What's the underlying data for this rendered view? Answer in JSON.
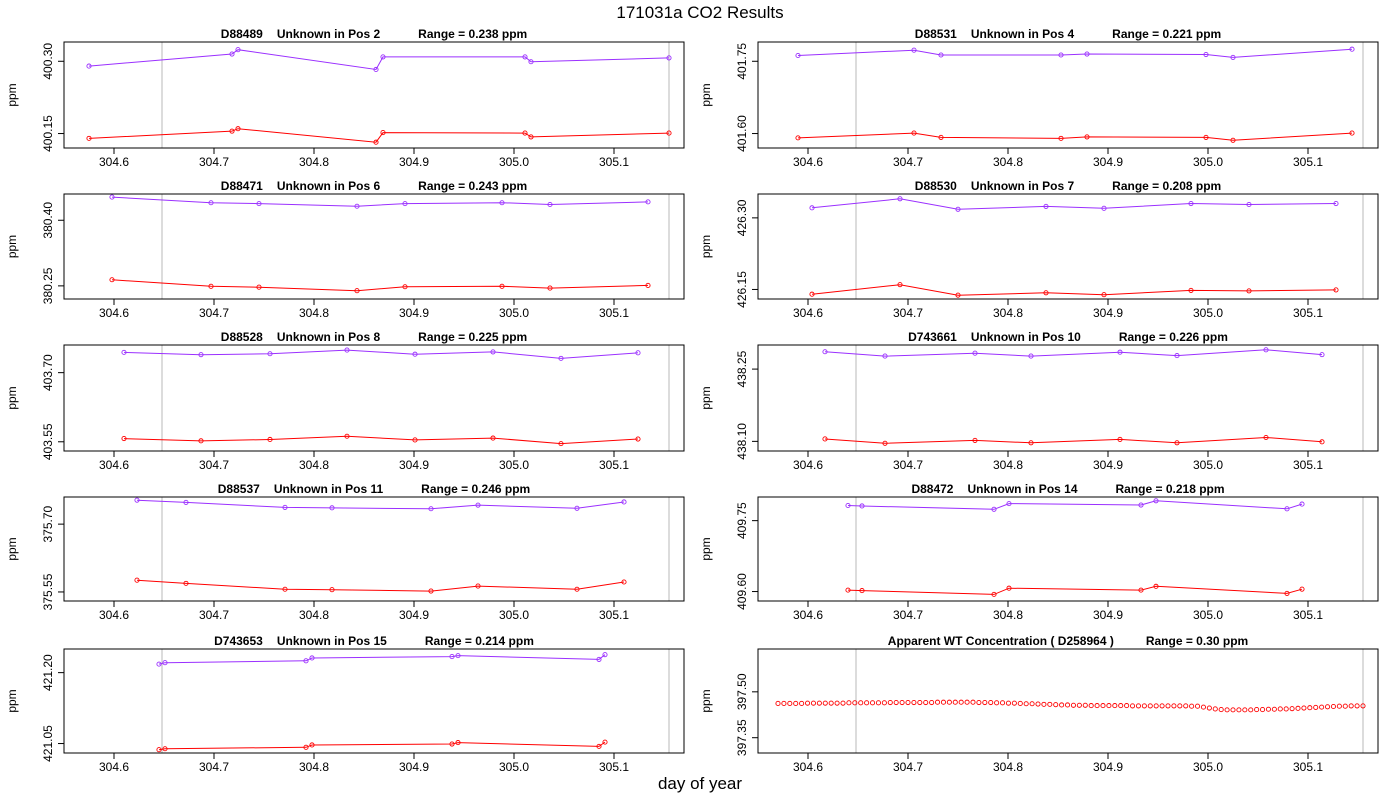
{
  "title": "171031a  CO2 Results",
  "xlabel": "day of year",
  "colors": {
    "upper": "#9b30ff",
    "lower": "#ff0000",
    "vline": "#c8c8c8",
    "axis": "#000000"
  },
  "chart_data": [
    {
      "type": "line",
      "panel_id": "D88489",
      "panel_label": "Unknown in Pos 2",
      "range_label": "Range =  0.238 ppm",
      "ylabel": "ppm",
      "xlim": [
        304.55,
        305.17
      ],
      "ylim": [
        400.12,
        400.34
      ],
      "xticks": [
        "304.6",
        "304.7",
        "304.8",
        "304.9",
        "305.0",
        "305.1"
      ],
      "yticks": [
        "400.15",
        "400.30"
      ],
      "vlines": [
        304.648,
        305.155
      ],
      "series": [
        {
          "role": "upper",
          "x": [
            304.575,
            304.718,
            304.724,
            304.862,
            304.869,
            305.011,
            305.017,
            305.155
          ],
          "y": [
            400.29,
            400.315,
            400.324,
            400.283,
            400.309,
            400.309,
            400.299,
            400.307
          ]
        },
        {
          "role": "lower",
          "x": [
            304.575,
            304.718,
            304.724,
            304.862,
            304.869,
            305.011,
            305.017,
            305.155
          ],
          "y": [
            400.14,
            400.155,
            400.16,
            400.132,
            400.152,
            400.151,
            400.143,
            400.151
          ]
        }
      ]
    },
    {
      "type": "line",
      "panel_id": "D88531",
      "panel_label": "Unknown in Pos 4",
      "range_label": "Range =  0.221 ppm",
      "ylabel": "ppm",
      "xlim": [
        304.55,
        305.17
      ],
      "ylim": [
        401.57,
        401.79
      ],
      "xticks": [
        "304.6",
        "304.7",
        "304.8",
        "304.9",
        "305.0",
        "305.1"
      ],
      "yticks": [
        "401.60",
        "401.75"
      ],
      "vlines": [
        304.648,
        305.155
      ],
      "series": [
        {
          "role": "upper",
          "x": [
            304.59,
            304.706,
            304.733,
            304.853,
            304.879,
            304.998,
            305.025,
            305.144
          ],
          "y": [
            401.762,
            401.773,
            401.763,
            401.763,
            401.765,
            401.764,
            401.758,
            401.775
          ]
        },
        {
          "role": "lower",
          "x": [
            304.59,
            304.706,
            304.733,
            304.853,
            304.879,
            304.998,
            305.025,
            305.144
          ],
          "y": [
            401.591,
            401.601,
            401.592,
            401.59,
            401.593,
            401.592,
            401.586,
            401.601
          ]
        }
      ]
    },
    {
      "type": "line",
      "panel_id": "D88471",
      "panel_label": "Unknown in Pos 6",
      "range_label": "Range =  0.243 ppm",
      "ylabel": "ppm",
      "xlim": [
        304.55,
        305.17
      ],
      "ylim": [
        380.22,
        380.46
      ],
      "xticks": [
        "304.6",
        "304.7",
        "304.8",
        "304.9",
        "305.0",
        "305.1"
      ],
      "yticks": [
        "380.25",
        "380.40"
      ],
      "vlines": [
        304.648,
        305.155
      ],
      "series": [
        {
          "role": "upper",
          "x": [
            304.598,
            304.697,
            304.745,
            304.843,
            304.891,
            304.988,
            305.036,
            305.134
          ],
          "y": [
            380.453,
            380.44,
            380.438,
            380.432,
            380.438,
            380.44,
            380.436,
            380.442
          ]
        },
        {
          "role": "lower",
          "x": [
            304.598,
            304.697,
            304.745,
            304.843,
            304.891,
            304.988,
            305.036,
            305.134
          ],
          "y": [
            380.264,
            380.249,
            380.247,
            380.239,
            380.248,
            380.249,
            380.245,
            380.251
          ]
        }
      ]
    },
    {
      "type": "line",
      "panel_id": "D88530",
      "panel_label": "Unknown in Pos 7",
      "range_label": "Range =  0.208 ppm",
      "ylabel": "ppm",
      "xlim": [
        304.55,
        305.17
      ],
      "ylim": [
        426.13,
        426.35
      ],
      "xticks": [
        "304.6",
        "304.7",
        "304.8",
        "304.9",
        "305.0",
        "305.1"
      ],
      "yticks": [
        "426.15",
        "426.30"
      ],
      "vlines": [
        304.648,
        305.155
      ],
      "series": [
        {
          "role": "upper",
          "x": [
            304.604,
            304.692,
            304.75,
            304.838,
            304.896,
            304.983,
            305.041,
            305.128
          ],
          "y": [
            426.321,
            426.34,
            426.318,
            426.324,
            426.32,
            426.33,
            426.328,
            426.33
          ]
        },
        {
          "role": "lower",
          "x": [
            304.604,
            304.692,
            304.75,
            304.838,
            304.896,
            304.983,
            305.041,
            305.128
          ],
          "y": [
            426.14,
            426.16,
            426.138,
            426.143,
            426.139,
            426.148,
            426.147,
            426.149
          ]
        }
      ]
    },
    {
      "type": "line",
      "panel_id": "D88528",
      "panel_label": "Unknown in Pos 8",
      "range_label": "Range =  0.225 ppm",
      "ylabel": "ppm",
      "xlim": [
        304.55,
        305.17
      ],
      "ylim": [
        403.53,
        403.76
      ],
      "xticks": [
        "304.6",
        "304.7",
        "304.8",
        "304.9",
        "305.0",
        "305.1"
      ],
      "yticks": [
        "403.55",
        "403.70"
      ],
      "vlines": [
        304.648,
        305.155
      ],
      "series": [
        {
          "role": "upper",
          "x": [
            304.61,
            304.687,
            304.756,
            304.833,
            304.901,
            304.979,
            305.047,
            305.124
          ],
          "y": [
            403.744,
            403.739,
            403.741,
            403.749,
            403.74,
            403.745,
            403.731,
            403.743
          ]
        },
        {
          "role": "lower",
          "x": [
            304.61,
            304.687,
            304.756,
            304.833,
            304.901,
            304.979,
            305.047,
            305.124
          ],
          "y": [
            403.557,
            403.552,
            403.555,
            403.562,
            403.554,
            403.558,
            403.546,
            403.556
          ]
        }
      ]
    },
    {
      "type": "line",
      "panel_id": "D743661",
      "panel_label": "Unknown in Pos 10",
      "range_label": "Range =  0.226 ppm",
      "ylabel": "ppm",
      "xlim": [
        304.55,
        305.17
      ],
      "ylim": [
        438.08,
        438.3
      ],
      "xticks": [
        "304.6",
        "304.7",
        "304.8",
        "304.9",
        "305.0",
        "305.1"
      ],
      "yticks": [
        "438.10",
        "438.25"
      ],
      "vlines": [
        304.648,
        305.155
      ],
      "series": [
        {
          "role": "upper",
          "x": [
            304.617,
            304.677,
            304.767,
            304.823,
            304.912,
            304.969,
            305.058,
            305.114
          ],
          "y": [
            438.286,
            438.277,
            438.283,
            438.277,
            438.285,
            438.278,
            438.29,
            438.28
          ]
        },
        {
          "role": "lower",
          "x": [
            304.617,
            304.677,
            304.767,
            304.823,
            304.912,
            304.969,
            305.058,
            305.114
          ],
          "y": [
            438.105,
            438.096,
            438.102,
            438.097,
            438.104,
            438.097,
            438.108,
            438.099
          ]
        }
      ]
    },
    {
      "type": "line",
      "panel_id": "D88537",
      "panel_label": "Unknown in Pos 11",
      "range_label": "Range =  0.246 ppm",
      "ylabel": "ppm",
      "xlim": [
        304.55,
        305.17
      ],
      "ylim": [
        375.53,
        375.76
      ],
      "xticks": [
        "304.6",
        "304.7",
        "304.8",
        "304.9",
        "305.0",
        "305.1"
      ],
      "yticks": [
        "375.55",
        "375.70"
      ],
      "vlines": [
        304.648,
        305.155
      ],
      "series": [
        {
          "role": "upper",
          "x": [
            304.623,
            304.672,
            304.771,
            304.818,
            304.917,
            304.964,
            305.063,
            305.11
          ],
          "y": [
            375.753,
            375.748,
            375.737,
            375.736,
            375.734,
            375.742,
            375.735,
            375.749
          ]
        },
        {
          "role": "lower",
          "x": [
            304.623,
            304.672,
            304.771,
            304.818,
            304.917,
            304.964,
            305.063,
            305.11
          ],
          "y": [
            375.576,
            375.569,
            375.556,
            375.555,
            375.552,
            375.563,
            375.556,
            375.572
          ]
        }
      ]
    },
    {
      "type": "line",
      "panel_id": "D88472",
      "panel_label": "Unknown in Pos 14",
      "range_label": "Range =  0.218 ppm",
      "ylabel": "ppm",
      "xlim": [
        304.55,
        305.17
      ],
      "ylim": [
        409.58,
        409.8
      ],
      "xticks": [
        "304.6",
        "304.7",
        "304.8",
        "304.9",
        "305.0",
        "305.1"
      ],
      "yticks": [
        "409.60",
        "409.75"
      ],
      "vlines": [
        304.648,
        305.155
      ],
      "series": [
        {
          "role": "upper",
          "x": [
            304.64,
            304.654,
            304.786,
            304.801,
            304.933,
            304.948,
            305.079,
            305.094
          ],
          "y": [
            409.782,
            409.781,
            409.774,
            409.786,
            409.783,
            409.792,
            409.775,
            409.785
          ]
        },
        {
          "role": "lower",
          "x": [
            304.64,
            304.654,
            304.786,
            304.801,
            304.933,
            304.948,
            305.079,
            305.094
          ],
          "y": [
            409.603,
            409.602,
            409.594,
            409.607,
            409.603,
            409.611,
            409.596,
            409.605
          ]
        }
      ]
    },
    {
      "type": "line",
      "panel_id": "D743653",
      "panel_label": "Unknown in Pos 15",
      "range_label": "Range =  0.214 ppm",
      "ylabel": "ppm",
      "xlim": [
        304.55,
        305.17
      ],
      "ylim": [
        421.03,
        421.25
      ],
      "xticks": [
        "304.6",
        "304.7",
        "304.8",
        "304.9",
        "305.0",
        "305.1"
      ],
      "yticks": [
        "421.05",
        "421.20"
      ],
      "vlines": [
        304.648,
        305.155
      ],
      "series": [
        {
          "role": "upper",
          "x": [
            304.645,
            304.651,
            304.792,
            304.798,
            304.938,
            304.944,
            305.085,
            305.091
          ],
          "y": [
            421.218,
            421.221,
            421.225,
            421.231,
            421.234,
            421.236,
            421.228,
            421.238
          ]
        },
        {
          "role": "lower",
          "x": [
            304.645,
            304.651,
            304.792,
            304.798,
            304.938,
            304.944,
            305.085,
            305.091
          ],
          "y": [
            421.037,
            421.039,
            421.042,
            421.047,
            421.049,
            421.052,
            421.044,
            421.053
          ]
        }
      ]
    },
    {
      "type": "scatter",
      "panel_id": "",
      "panel_label": "Apparent WT Concentration ( D258964 )",
      "range_label": "Range = 0.30 ppm",
      "ylabel": "ppm",
      "xlim": [
        304.55,
        305.17
      ],
      "ylim": [
        397.3,
        397.64
      ],
      "xticks": [
        "304.6",
        "304.7",
        "304.8",
        "304.9",
        "305.0",
        "305.1"
      ],
      "yticks": [
        "397.35",
        "397.50"
      ],
      "vlines": [
        304.648,
        305.155
      ],
      "series": [
        {
          "role": "lower",
          "x_start": 304.57,
          "x_end": 305.155,
          "count": 100,
          "y": [
            397.462,
            397.462,
            397.462,
            397.462,
            397.462,
            397.463,
            397.463,
            397.463,
            397.463,
            397.463,
            397.463,
            397.463,
            397.464,
            397.464,
            397.464,
            397.464,
            397.464,
            397.464,
            397.464,
            397.465,
            397.465,
            397.465,
            397.465,
            397.465,
            397.465,
            397.465,
            397.465,
            397.466,
            397.466,
            397.466,
            397.466,
            397.466,
            397.466,
            397.466,
            397.465,
            397.465,
            397.465,
            397.464,
            397.464,
            397.463,
            397.463,
            397.462,
            397.461,
            397.461,
            397.46,
            397.459,
            397.459,
            397.458,
            397.457,
            397.457,
            397.456,
            397.456,
            397.456,
            397.455,
            397.455,
            397.455,
            397.455,
            397.455,
            397.455,
            397.455,
            397.454,
            397.454,
            397.454,
            397.454,
            397.454,
            397.454,
            397.454,
            397.454,
            397.454,
            397.454,
            397.453,
            397.453,
            397.45,
            397.447,
            397.444,
            397.442,
            397.441,
            397.441,
            397.441,
            397.441,
            397.441,
            397.442,
            397.442,
            397.443,
            397.443,
            397.444,
            397.444,
            397.445,
            397.446,
            397.447,
            397.448,
            397.449,
            397.45,
            397.451,
            397.452,
            397.453,
            397.453,
            397.454,
            397.454,
            397.454
          ]
        }
      ]
    }
  ]
}
